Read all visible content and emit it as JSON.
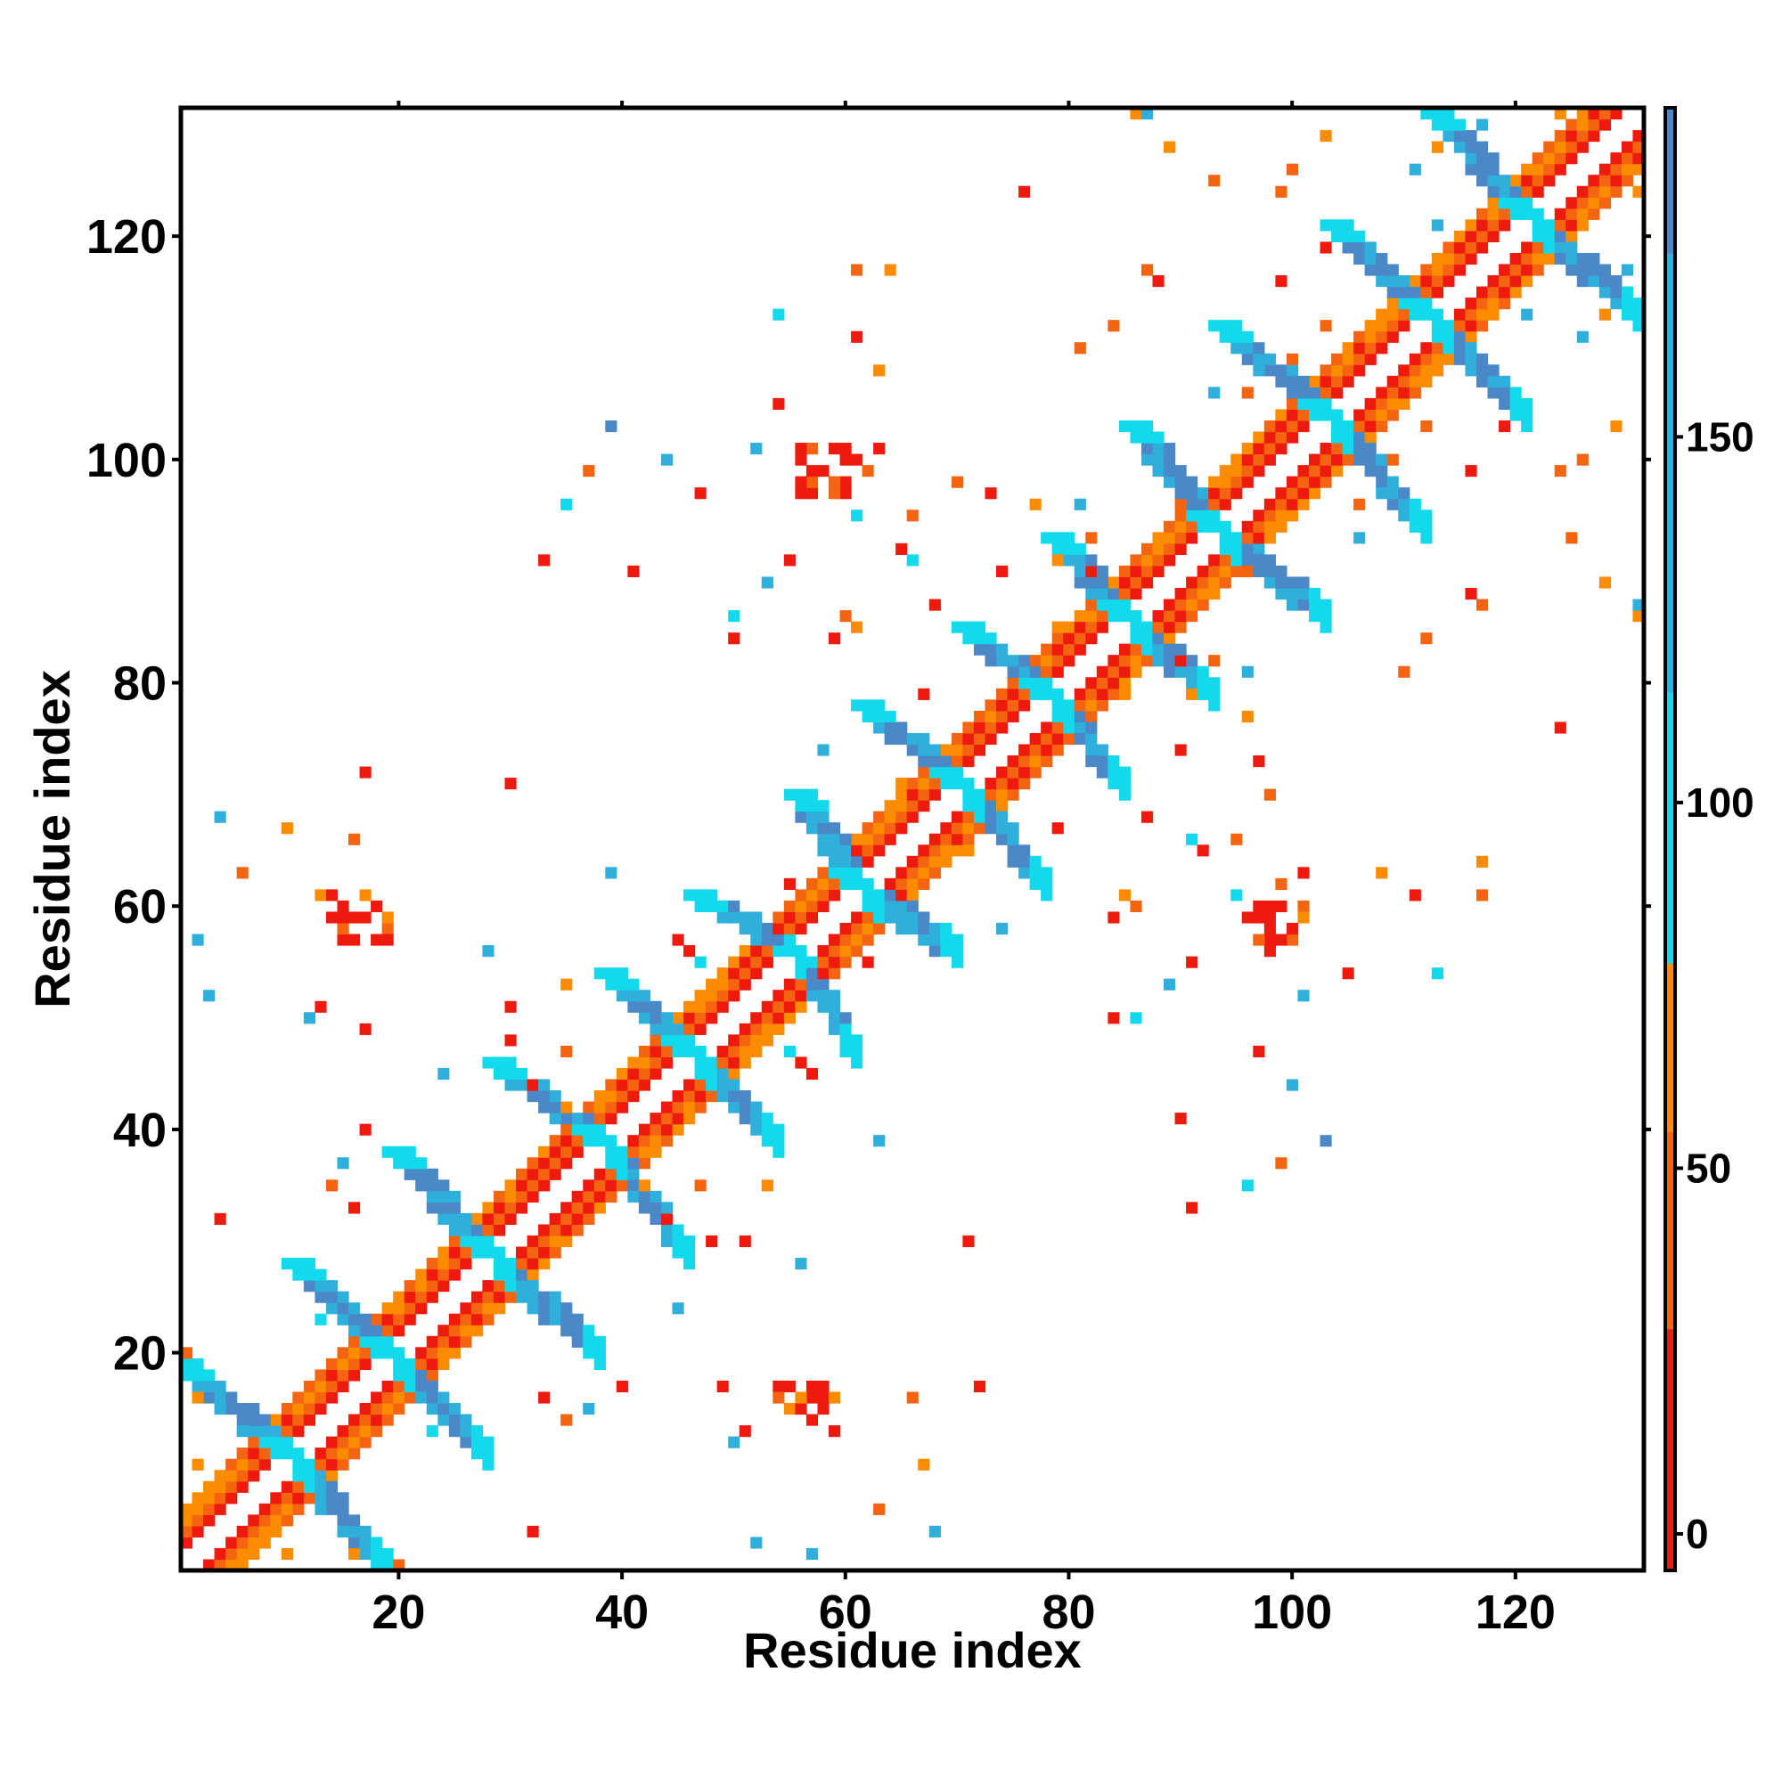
{
  "chart_data": {
    "type": "heatmap",
    "title": "",
    "xlabel": "Residue index",
    "ylabel": "Residue index",
    "xlim": [
      1,
      131
    ],
    "ylim": [
      1,
      131
    ],
    "x_ticks": [
      20,
      40,
      60,
      80,
      100,
      120
    ],
    "y_ticks": [
      20,
      40,
      60,
      80,
      100,
      120
    ],
    "x_tick_labels": [
      "20",
      "40",
      "60",
      "80",
      "100",
      "120"
    ],
    "y_tick_labels": [
      "20",
      "40",
      "60",
      "80",
      "100",
      "120"
    ],
    "colorbar": {
      "range": [
        -5,
        195
      ],
      "ticks": [
        0,
        50,
        100,
        150
      ],
      "tick_labels": [
        "0",
        "50",
        "100",
        "150"
      ],
      "bands": [
        {
          "from": -5,
          "to": 28,
          "color": "#ee1a0e"
        },
        {
          "from": 28,
          "to": 55,
          "color": "#f56410"
        },
        {
          "from": 55,
          "to": 78,
          "color": "#fb8c00"
        },
        {
          "from": 78,
          "to": 115,
          "color": "#12d9ec"
        },
        {
          "from": 115,
          "to": 175,
          "color": "#2fb0dc"
        },
        {
          "from": 175,
          "to": 195,
          "color": "#4b88c8"
        }
      ]
    },
    "legend_position": "right colorbar",
    "grid": false,
    "structure": {
      "note_hidden": "",
      "diagonal": {
        "from": 1,
        "to": 131,
        "half_width": 5
      },
      "helices": [
        [
          [
            1,
            10
          ],
          [
            11,
            19
          ]
        ],
        [
          [
            11,
            19
          ],
          [
            20,
            28
          ]
        ],
        [
          [
            20,
            28
          ],
          [
            29,
            38
          ]
        ],
        [
          [
            29,
            38
          ],
          [
            39,
            46
          ]
        ],
        [
          [
            39,
            46
          ],
          [
            47,
            54
          ]
        ],
        [
          [
            47,
            55
          ],
          [
            56,
            61
          ]
        ],
        [
          [
            56,
            61
          ],
          [
            62,
            70
          ]
        ],
        [
          [
            62,
            70
          ],
          [
            71,
            78
          ]
        ],
        [
          [
            71,
            78
          ],
          [
            79,
            85
          ]
        ],
        [
          [
            79,
            85
          ],
          [
            86,
            93
          ]
        ],
        [
          [
            86,
            93
          ],
          [
            94,
            103
          ]
        ],
        [
          [
            94,
            103
          ],
          [
            104,
            112
          ]
        ],
        [
          [
            104,
            112
          ],
          [
            113,
            121
          ]
        ],
        [
          [
            113,
            121
          ],
          [
            122,
            131
          ]
        ]
      ],
      "red_patches": [
        {
          "x": 16,
          "y": 59,
          "count": 20
        },
        {
          "x": 57,
          "y": 15,
          "count": 20
        },
        {
          "x": 99,
          "y": 58,
          "count": 20
        },
        {
          "x": 58,
          "y": 99,
          "count": 20
        }
      ],
      "scattered_contacts": 140
    }
  }
}
